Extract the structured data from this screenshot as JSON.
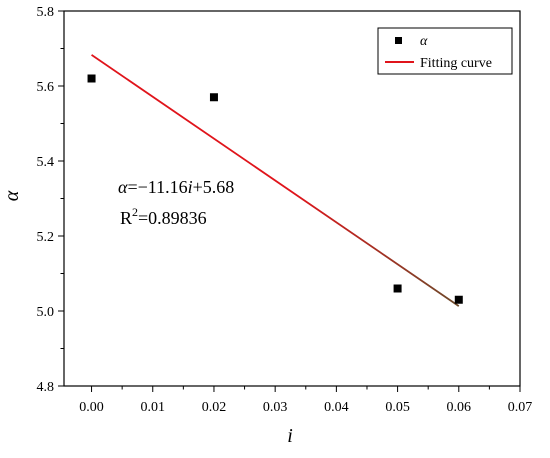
{
  "chart_data": {
    "type": "scatter",
    "title": "",
    "xlabel": "i",
    "ylabel": "α",
    "xlim": [
      -0.0045,
      0.07
    ],
    "ylim": [
      4.8,
      5.8
    ],
    "x_ticks": [
      0.0,
      0.01,
      0.02,
      0.03,
      0.04,
      0.05,
      0.06,
      0.07
    ],
    "x_tick_labels": [
      "0.00",
      "0.01",
      "0.02",
      "0.03",
      "0.04",
      "0.05",
      "0.06",
      "0.07"
    ],
    "y_ticks": [
      4.8,
      5.0,
      5.2,
      5.4,
      5.6,
      5.8
    ],
    "y_tick_labels": [
      "4.8",
      "5.0",
      "5.2",
      "5.4",
      "5.6",
      "5.8"
    ],
    "grid": false,
    "legend_position": "top-right",
    "series": [
      {
        "name": "α",
        "kind": "scatter",
        "marker": "square",
        "color": "#000000",
        "points": [
          {
            "x": 0.0,
            "y": 5.62
          },
          {
            "x": 0.02,
            "y": 5.57
          },
          {
            "x": 0.05,
            "y": 5.06
          },
          {
            "x": 0.06,
            "y": 5.03
          }
        ]
      },
      {
        "name": "Fitting curve",
        "kind": "line",
        "color": "#e0141b",
        "color_end": "#6b4a2a",
        "points": [
          {
            "x": 0.0,
            "y": 5.683
          },
          {
            "x": 0.06,
            "y": 5.013
          }
        ]
      }
    ],
    "annotations": {
      "equation": {
        "lhs": "α",
        "rhs_a": "=−11.16",
        "var": "i",
        "rhs_b": "+5.68"
      },
      "r2": {
        "base": "R",
        "sup": "2",
        "value": "=0.89836"
      }
    }
  }
}
